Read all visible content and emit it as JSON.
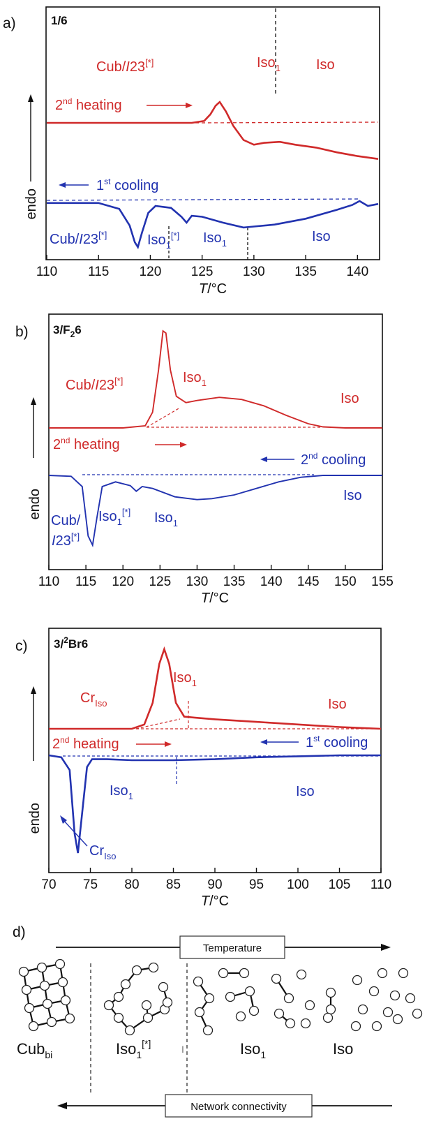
{
  "chart_data": [
    {
      "type": "line",
      "panel_label": "a)",
      "title": "1/6",
      "xlabel_italic": "T",
      "xlabel_rest": "/°C",
      "ylabel": "endo",
      "xlim": [
        110,
        142
      ],
      "xticks": [
        110,
        115,
        120,
        125,
        130,
        135,
        140
      ],
      "series": [
        {
          "name": "2nd heating",
          "color": "#d02a2a",
          "baseline": 0.78,
          "x": [
            110,
            120,
            124,
            125.2,
            125.8,
            126.3,
            126.7,
            127.3,
            128,
            129,
            130,
            131,
            132.5,
            134,
            136,
            138,
            140,
            142
          ],
          "y": [
            0.78,
            0.78,
            0.78,
            0.8,
            0.87,
            0.96,
            1.0,
            0.9,
            0.75,
            0.6,
            0.55,
            0.57,
            0.58,
            0.55,
            0.52,
            0.47,
            0.43,
            0.4
          ]
        },
        {
          "name": "1st cooling",
          "color": "#2233b0",
          "x": [
            110,
            115,
            117,
            118,
            118.5,
            118.8,
            119.2,
            119.8,
            120.5,
            122,
            123,
            123.5,
            124,
            125,
            127,
            129,
            130,
            132,
            135,
            138,
            139.5,
            140.2,
            141,
            142
          ],
          "y": [
            -0.02,
            -0.02,
            -0.08,
            -0.25,
            -0.42,
            -0.47,
            -0.32,
            -0.12,
            -0.05,
            -0.07,
            -0.16,
            -0.22,
            -0.15,
            -0.16,
            -0.22,
            -0.27,
            -0.26,
            -0.24,
            -0.18,
            -0.09,
            -0.04,
            0.0,
            -0.05,
            -0.03
          ]
        }
      ],
      "annotations": {
        "heating_label": "2nd heating",
        "cooling_label": "1st cooling",
        "red_phase_1": "Cub/I23[*]",
        "red_phase_2": "Iso1",
        "red_phase_3": "Iso",
        "blue_phase_1": "Cub/I23[*]",
        "blue_phase_2": "Iso1[*]",
        "blue_phase_3": "Iso1",
        "blue_phase_4": "Iso"
      }
    },
    {
      "type": "line",
      "panel_label": "b)",
      "title": "3/F26",
      "xlabel_italic": "T",
      "xlabel_rest": "/°C",
      "ylabel": "endo",
      "xlim": [
        110,
        155
      ],
      "xticks": [
        110,
        115,
        120,
        125,
        130,
        135,
        140,
        145,
        150,
        155
      ],
      "series": [
        {
          "name": "2nd heating",
          "color": "#d02a2a",
          "x": [
            110,
            120,
            123,
            124,
            124.8,
            125.4,
            125.8,
            126.4,
            127.2,
            128.5,
            130,
            133,
            136,
            139,
            142,
            145,
            147,
            150,
            155
          ],
          "y": [
            0.0,
            0.0,
            0.02,
            0.15,
            0.55,
            0.92,
            0.9,
            0.55,
            0.3,
            0.24,
            0.26,
            0.29,
            0.27,
            0.21,
            0.12,
            0.04,
            0.01,
            0.0,
            0.0
          ]
        },
        {
          "name": "2nd cooling",
          "color": "#2233b0",
          "x": [
            110,
            113,
            114.5,
            115.3,
            115.9,
            116.5,
            117.2,
            119,
            121,
            121.8,
            122.6,
            124,
            127,
            130,
            132,
            135,
            138,
            141,
            144,
            147,
            150,
            155
          ],
          "y": [
            0.0,
            -0.01,
            -0.12,
            -0.65,
            -0.75,
            -0.45,
            -0.12,
            -0.07,
            -0.11,
            -0.17,
            -0.12,
            -0.14,
            -0.23,
            -0.26,
            -0.25,
            -0.21,
            -0.14,
            -0.07,
            -0.02,
            0.0,
            0.0,
            0.0
          ]
        }
      ],
      "annotations": {
        "heating_label": "2nd heating",
        "cooling_label": "2nd cooling",
        "red_phase_1": "Cub/I23[*]",
        "red_phase_2": "Iso1",
        "red_phase_3": "Iso",
        "blue_phase_1": "Cub/ I23[*]",
        "blue_phase_2": "Iso1[*]",
        "blue_phase_3": "Iso1",
        "blue_phase_4": "Iso"
      }
    },
    {
      "type": "line",
      "panel_label": "c)",
      "title": "3/2Br6",
      "xlabel_italic": "T",
      "xlabel_rest": "/°C",
      "ylabel": "endo",
      "xlim": [
        70,
        110
      ],
      "xticks": [
        70,
        75,
        80,
        85,
        90,
        95,
        100,
        105,
        110
      ],
      "series": [
        {
          "name": "2nd heating",
          "color": "#d02a2a",
          "x": [
            70,
            80,
            81.5,
            82.5,
            83.3,
            83.9,
            84.5,
            85.3,
            86.3,
            87.5,
            90,
            95,
            100,
            105,
            110
          ],
          "y": [
            0.0,
            0.0,
            0.05,
            0.3,
            0.75,
            0.92,
            0.75,
            0.3,
            0.14,
            0.13,
            0.11,
            0.08,
            0.05,
            0.02,
            0.0
          ]
        },
        {
          "name": "1st cooling",
          "color": "#2233b0",
          "x": [
            70,
            71.5,
            72.5,
            73.1,
            73.5,
            74,
            74.6,
            75.2,
            77,
            80,
            85,
            90,
            95,
            100,
            105,
            110
          ],
          "y": [
            0.0,
            -0.02,
            -0.15,
            -0.8,
            -1.0,
            -0.6,
            -0.12,
            -0.04,
            -0.04,
            -0.05,
            -0.05,
            -0.04,
            -0.02,
            -0.01,
            0.0,
            0.0
          ]
        }
      ],
      "annotations": {
        "heating_label": "2nd heating",
        "cooling_label": "1st cooling",
        "red_phase_1": "CrIso",
        "red_phase_2": "Iso1",
        "red_phase_3": "Iso",
        "blue_phase_1": "Iso1",
        "blue_phase_2": "Iso",
        "blue_phase_3": "CrIso"
      }
    }
  ],
  "diagram": {
    "panel_label": "d)",
    "temperature_label": "Temperature",
    "connectivity_label": "Network connectivity",
    "phase_cub": "Cub",
    "phase_cub_sub": "bi",
    "phase_iso1_star": "Iso",
    "phase_iso1_star_sub": "1",
    "phase_iso1_star_sup": "[*]",
    "phase_iso1": "Iso",
    "phase_iso1_sub": "1",
    "phase_iso": "Iso",
    "separator_mark": "I"
  },
  "colors": {
    "heating": "#d02a2a",
    "cooling": "#2233b0"
  }
}
